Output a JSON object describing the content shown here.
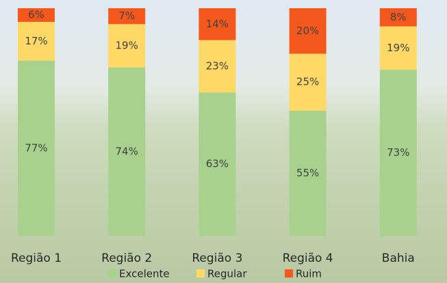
{
  "chart_data": {
    "type": "stacked-bar",
    "categories": [
      "Região 1",
      "Região 2",
      "Região 3",
      "Região 4",
      "Bahia"
    ],
    "series": [
      {
        "name": "Excelente",
        "color": "#a9d18e",
        "values": [
          77,
          74,
          63,
          55,
          73
        ],
        "value_labels": [
          "77%",
          "74%",
          "63%",
          "55%",
          "73%"
        ]
      },
      {
        "name": "Regular",
        "color": "#ffd966",
        "values": [
          17,
          19,
          23,
          25,
          19
        ],
        "value_labels": [
          "17%",
          "19%",
          "23%",
          "25%",
          "19%"
        ]
      },
      {
        "name": "Ruim",
        "color": "#f4581c",
        "values": [
          6,
          7,
          14,
          20,
          8
        ],
        "value_labels": [
          "6%",
          "7%",
          "14%",
          "20%",
          "8%"
        ]
      }
    ]
  }
}
